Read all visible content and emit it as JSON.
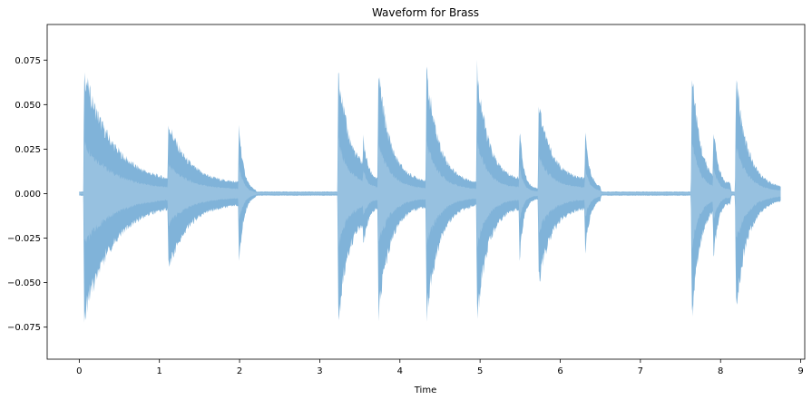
{
  "chart_data": {
    "type": "area",
    "title": "Waveform for Brass",
    "xlabel": "Time",
    "ylabel": "",
    "xlim": [
      -0.4,
      9.05
    ],
    "ylim": [
      -0.093,
      0.095
    ],
    "x_ticks": [
      0,
      1,
      2,
      3,
      4,
      5,
      6,
      7,
      8,
      9
    ],
    "y_ticks": [
      -0.075,
      -0.05,
      -0.025,
      0.0,
      0.025,
      0.05,
      0.075
    ],
    "y_tick_labels": [
      "−0.075",
      "−0.050",
      "−0.025",
      "0.000",
      "0.025",
      "0.050",
      "0.075"
    ],
    "grid": false,
    "duration": 8.75,
    "noise_floor": 0.0012,
    "color_outer": "#6aa6d2",
    "color_inner": "#9fc5e1",
    "notes": [
      {
        "t": 0.05,
        "end": 1.1,
        "peak": 0.077,
        "trough": -0.078,
        "decay": 0.35,
        "sustain": 0.006
      },
      {
        "t": 1.1,
        "end": 2.0,
        "peak": 0.045,
        "trough": -0.047,
        "decay": 0.25,
        "sustain": 0.006
      },
      {
        "t": 1.98,
        "end": 2.2,
        "peak": 0.052,
        "trough": -0.051,
        "decay": 0.06,
        "sustain": 0.001
      },
      {
        "t": 3.22,
        "end": 3.55,
        "peak": 0.086,
        "trough": -0.086,
        "decay": 0.12,
        "sustain": 0.014
      },
      {
        "t": 3.53,
        "end": 3.72,
        "peak": 0.041,
        "trough": -0.04,
        "decay": 0.06,
        "sustain": 0.008
      },
      {
        "t": 3.72,
        "end": 4.32,
        "peak": 0.08,
        "trough": -0.08,
        "decay": 0.15,
        "sustain": 0.007
      },
      {
        "t": 4.32,
        "end": 4.96,
        "peak": 0.08,
        "trough": -0.081,
        "decay": 0.16,
        "sustain": 0.006
      },
      {
        "t": 4.95,
        "end": 5.5,
        "peak": 0.083,
        "trough": -0.082,
        "decay": 0.14,
        "sustain": 0.008
      },
      {
        "t": 5.48,
        "end": 5.73,
        "peak": 0.052,
        "trough": -0.053,
        "decay": 0.05,
        "sustain": 0.003
      },
      {
        "t": 5.72,
        "end": 6.32,
        "peak": 0.059,
        "trough": -0.059,
        "decay": 0.16,
        "sustain": 0.008
      },
      {
        "t": 6.3,
        "end": 6.5,
        "peak": 0.043,
        "trough": -0.043,
        "decay": 0.06,
        "sustain": 0.003
      },
      {
        "t": 7.63,
        "end": 8.12,
        "peak": 0.088,
        "trough": -0.088,
        "decay": 0.1,
        "sustain": 0.006
      },
      {
        "t": 7.9,
        "end": 8.12,
        "peak": 0.05,
        "trough": -0.05,
        "decay": 0.06,
        "sustain": 0.004
      },
      {
        "t": 8.18,
        "end": 8.75,
        "peak": 0.076,
        "trough": -0.076,
        "decay": 0.15,
        "sustain": 0.003
      }
    ]
  }
}
